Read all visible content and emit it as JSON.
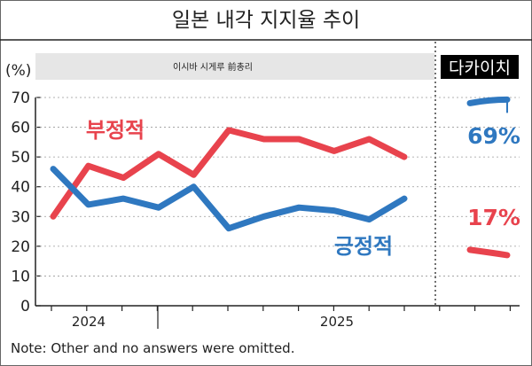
{
  "title": "일본 내각 지지율 추이",
  "note": "Note: Other and no answers were omitted.",
  "chart_data": {
    "type": "line",
    "y_unit_label": "(%)",
    "ylim": [
      0,
      70
    ],
    "yticks": [
      0,
      10,
      20,
      30,
      40,
      50,
      60,
      70
    ],
    "period_labels": {
      "ishiba": "이시바 시게루 前총리",
      "takaichi": "다카이치"
    },
    "year_labels": [
      "2024",
      "2025"
    ],
    "series": [
      {
        "name": "부정적",
        "color": "#e8434d",
        "values": [
          30,
          47,
          43,
          51,
          44,
          59,
          56,
          56,
          52,
          56,
          50
        ]
      },
      {
        "name": "긍정적",
        "color": "#2f78c0",
        "values": [
          46,
          34,
          36,
          33,
          40,
          26,
          30,
          33,
          32,
          29,
          36
        ]
      }
    ],
    "takaichi": {
      "approve": {
        "value": 69,
        "label": "69%",
        "color": "#2f78c0"
      },
      "disapprove": {
        "value": 17,
        "label": "17%",
        "color": "#e8434d"
      }
    }
  }
}
